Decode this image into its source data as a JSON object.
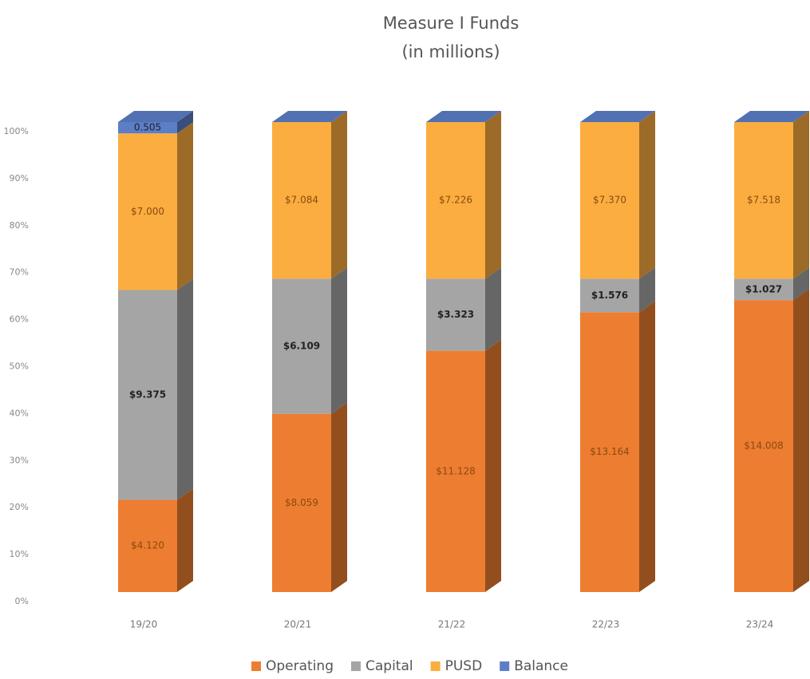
{
  "chart_data": {
    "type": "stacked_bar_100",
    "title": "Measure I Funds",
    "subtitle": "(in millions)",
    "categories": [
      "19/20",
      "20/21",
      "21/22",
      "22/23",
      "23/24"
    ],
    "series": [
      {
        "name": "Operating",
        "color": "#ed7d31",
        "values": [
          4.12,
          8.059,
          11.128,
          13.164,
          14.008
        ],
        "value_labels": [
          "$4.120",
          "$8.059",
          "$11.128",
          "$13.164",
          "$14.008"
        ]
      },
      {
        "name": "Capital",
        "color": "#a5a5a5",
        "values": [
          9.375,
          6.109,
          3.323,
          1.576,
          1.027
        ],
        "value_labels": [
          "$9.375",
          "$6.109",
          "$3.323",
          "$1.576",
          "$1.027"
        ]
      },
      {
        "name": "PUSD",
        "color": "#fbad40",
        "values": [
          7.0,
          7.084,
          7.226,
          7.37,
          7.518
        ],
        "value_labels": [
          "$7.000",
          "$7.084",
          "$7.226",
          "$7.370",
          "$7.518"
        ]
      },
      {
        "name": "Balance",
        "color": "#5b7ec6",
        "values": [
          0.505,
          0,
          0,
          0,
          0
        ]
      }
    ],
    "ylim": [
      0,
      100
    ],
    "yticks": [
      {
        "value": 0,
        "label": "0%"
      },
      {
        "value": 10,
        "label": "10%"
      },
      {
        "value": 20,
        "label": "20%"
      },
      {
        "value": 30,
        "label": "30%"
      },
      {
        "value": 40,
        "label": "40%"
      },
      {
        "value": 50,
        "label": "50%"
      },
      {
        "value": 60,
        "label": "60%"
      },
      {
        "value": 70,
        "label": "70%"
      },
      {
        "value": 80,
        "label": "80%"
      },
      {
        "value": 90,
        "label": "90%"
      },
      {
        "value": 100,
        "label": "100%"
      }
    ],
    "legend": "bottom"
  }
}
